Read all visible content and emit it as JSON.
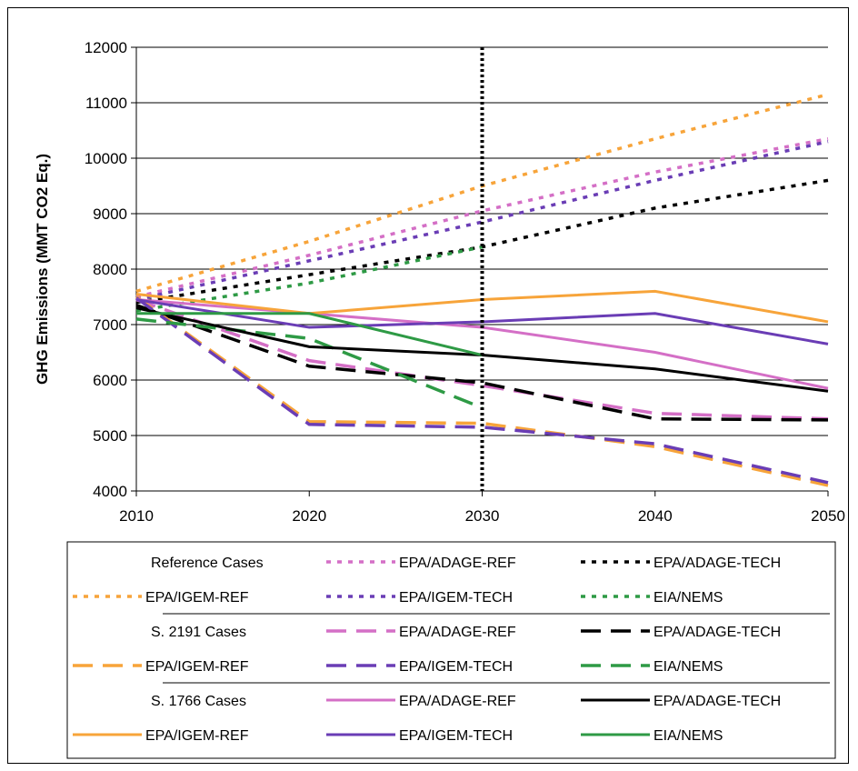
{
  "chart_data": {
    "type": "line",
    "title": "",
    "xlabel": "",
    "ylabel": "GHG Emissions (MMT CO2 Eq.)",
    "x": [
      2010,
      2020,
      2030,
      2040,
      2050
    ],
    "xlim": [
      2010,
      2050
    ],
    "ylim": [
      4000,
      12000
    ],
    "yticks": [
      4000,
      5000,
      6000,
      7000,
      8000,
      9000,
      10000,
      11000,
      12000
    ],
    "grid": true,
    "vertical_marker": 2030,
    "legend_position": "bottom",
    "series": [
      {
        "name": "EPA/ADAGE-REF",
        "group": "Reference Cases",
        "style": "dotted",
        "color": "#d46fc6",
        "values": [
          7500,
          8250,
          9050,
          9750,
          10350
        ]
      },
      {
        "name": "EPA/ADAGE-TECH",
        "group": "Reference Cases",
        "style": "dotted",
        "color": "#000000",
        "values": [
          7400,
          7900,
          8400,
          9100,
          9600
        ]
      },
      {
        "name": "EPA/IGEM-REF",
        "group": "Reference Cases",
        "style": "dotted",
        "color": "#f7a43a",
        "values": [
          7600,
          8500,
          9500,
          10350,
          11150
        ]
      },
      {
        "name": "EPA/IGEM-TECH",
        "group": "Reference Cases",
        "style": "dotted",
        "color": "#6a3db5",
        "values": [
          7450,
          8150,
          8850,
          9600,
          10300
        ]
      },
      {
        "name": "EIA/NEMS",
        "group": "Reference Cases",
        "style": "dotted",
        "color": "#2e9a45",
        "values": [
          7250,
          7750,
          8400,
          null,
          null
        ]
      },
      {
        "name": "EPA/ADAGE-REF",
        "group": "S. 2191 Cases",
        "style": "dashed",
        "color": "#d46fc6",
        "values": [
          7450,
          6350,
          5900,
          5400,
          5300
        ]
      },
      {
        "name": "EPA/ADAGE-TECH",
        "group": "S. 2191 Cases",
        "style": "dashed",
        "color": "#000000",
        "values": [
          7350,
          6250,
          5950,
          5300,
          5280
        ]
      },
      {
        "name": "EPA/IGEM-REF",
        "group": "S. 2191 Cases",
        "style": "dashed",
        "color": "#f7a43a",
        "values": [
          7500,
          5250,
          5220,
          4800,
          4100
        ]
      },
      {
        "name": "EPA/IGEM-TECH",
        "group": "S. 2191 Cases",
        "style": "dashed",
        "color": "#6a3db5",
        "values": [
          7480,
          5200,
          5150,
          4850,
          4150
        ]
      },
      {
        "name": "EIA/NEMS",
        "group": "S. 2191 Cases",
        "style": "dashed",
        "color": "#2e9a45",
        "values": [
          7100,
          6750,
          5500,
          null,
          null
        ]
      },
      {
        "name": "EPA/ADAGE-REF",
        "group": "S. 1766 Cases",
        "style": "solid",
        "color": "#d46fc6",
        "values": [
          7450,
          7200,
          6950,
          6500,
          5850
        ]
      },
      {
        "name": "EPA/ADAGE-TECH",
        "group": "S. 1766 Cases",
        "style": "solid",
        "color": "#000000",
        "values": [
          7300,
          6600,
          6450,
          6200,
          5800
        ]
      },
      {
        "name": "EPA/IGEM-REF",
        "group": "S. 1766 Cases",
        "style": "solid",
        "color": "#f7a43a",
        "values": [
          7550,
          7200,
          7450,
          7600,
          7050
        ]
      },
      {
        "name": "EPA/IGEM-TECH",
        "group": "S. 1766 Cases",
        "style": "solid",
        "color": "#6a3db5",
        "values": [
          7450,
          6950,
          7050,
          7200,
          6650
        ]
      },
      {
        "name": "EIA/NEMS",
        "group": "S. 1766 Cases",
        "style": "solid",
        "color": "#2e9a45",
        "values": [
          7200,
          7200,
          6450,
          null,
          null
        ]
      }
    ],
    "legend": {
      "groups": [
        {
          "label": "Reference Cases",
          "style": "dotted"
        },
        {
          "label": "S. 2191 Cases",
          "style": "dashed"
        },
        {
          "label": "S. 1766 Cases",
          "style": "solid"
        }
      ],
      "entries": [
        "EPA/ADAGE-REF",
        "EPA/ADAGE-TECH",
        "EPA/IGEM-REF",
        "EPA/IGEM-TECH",
        "EIA/NEMS"
      ]
    }
  }
}
